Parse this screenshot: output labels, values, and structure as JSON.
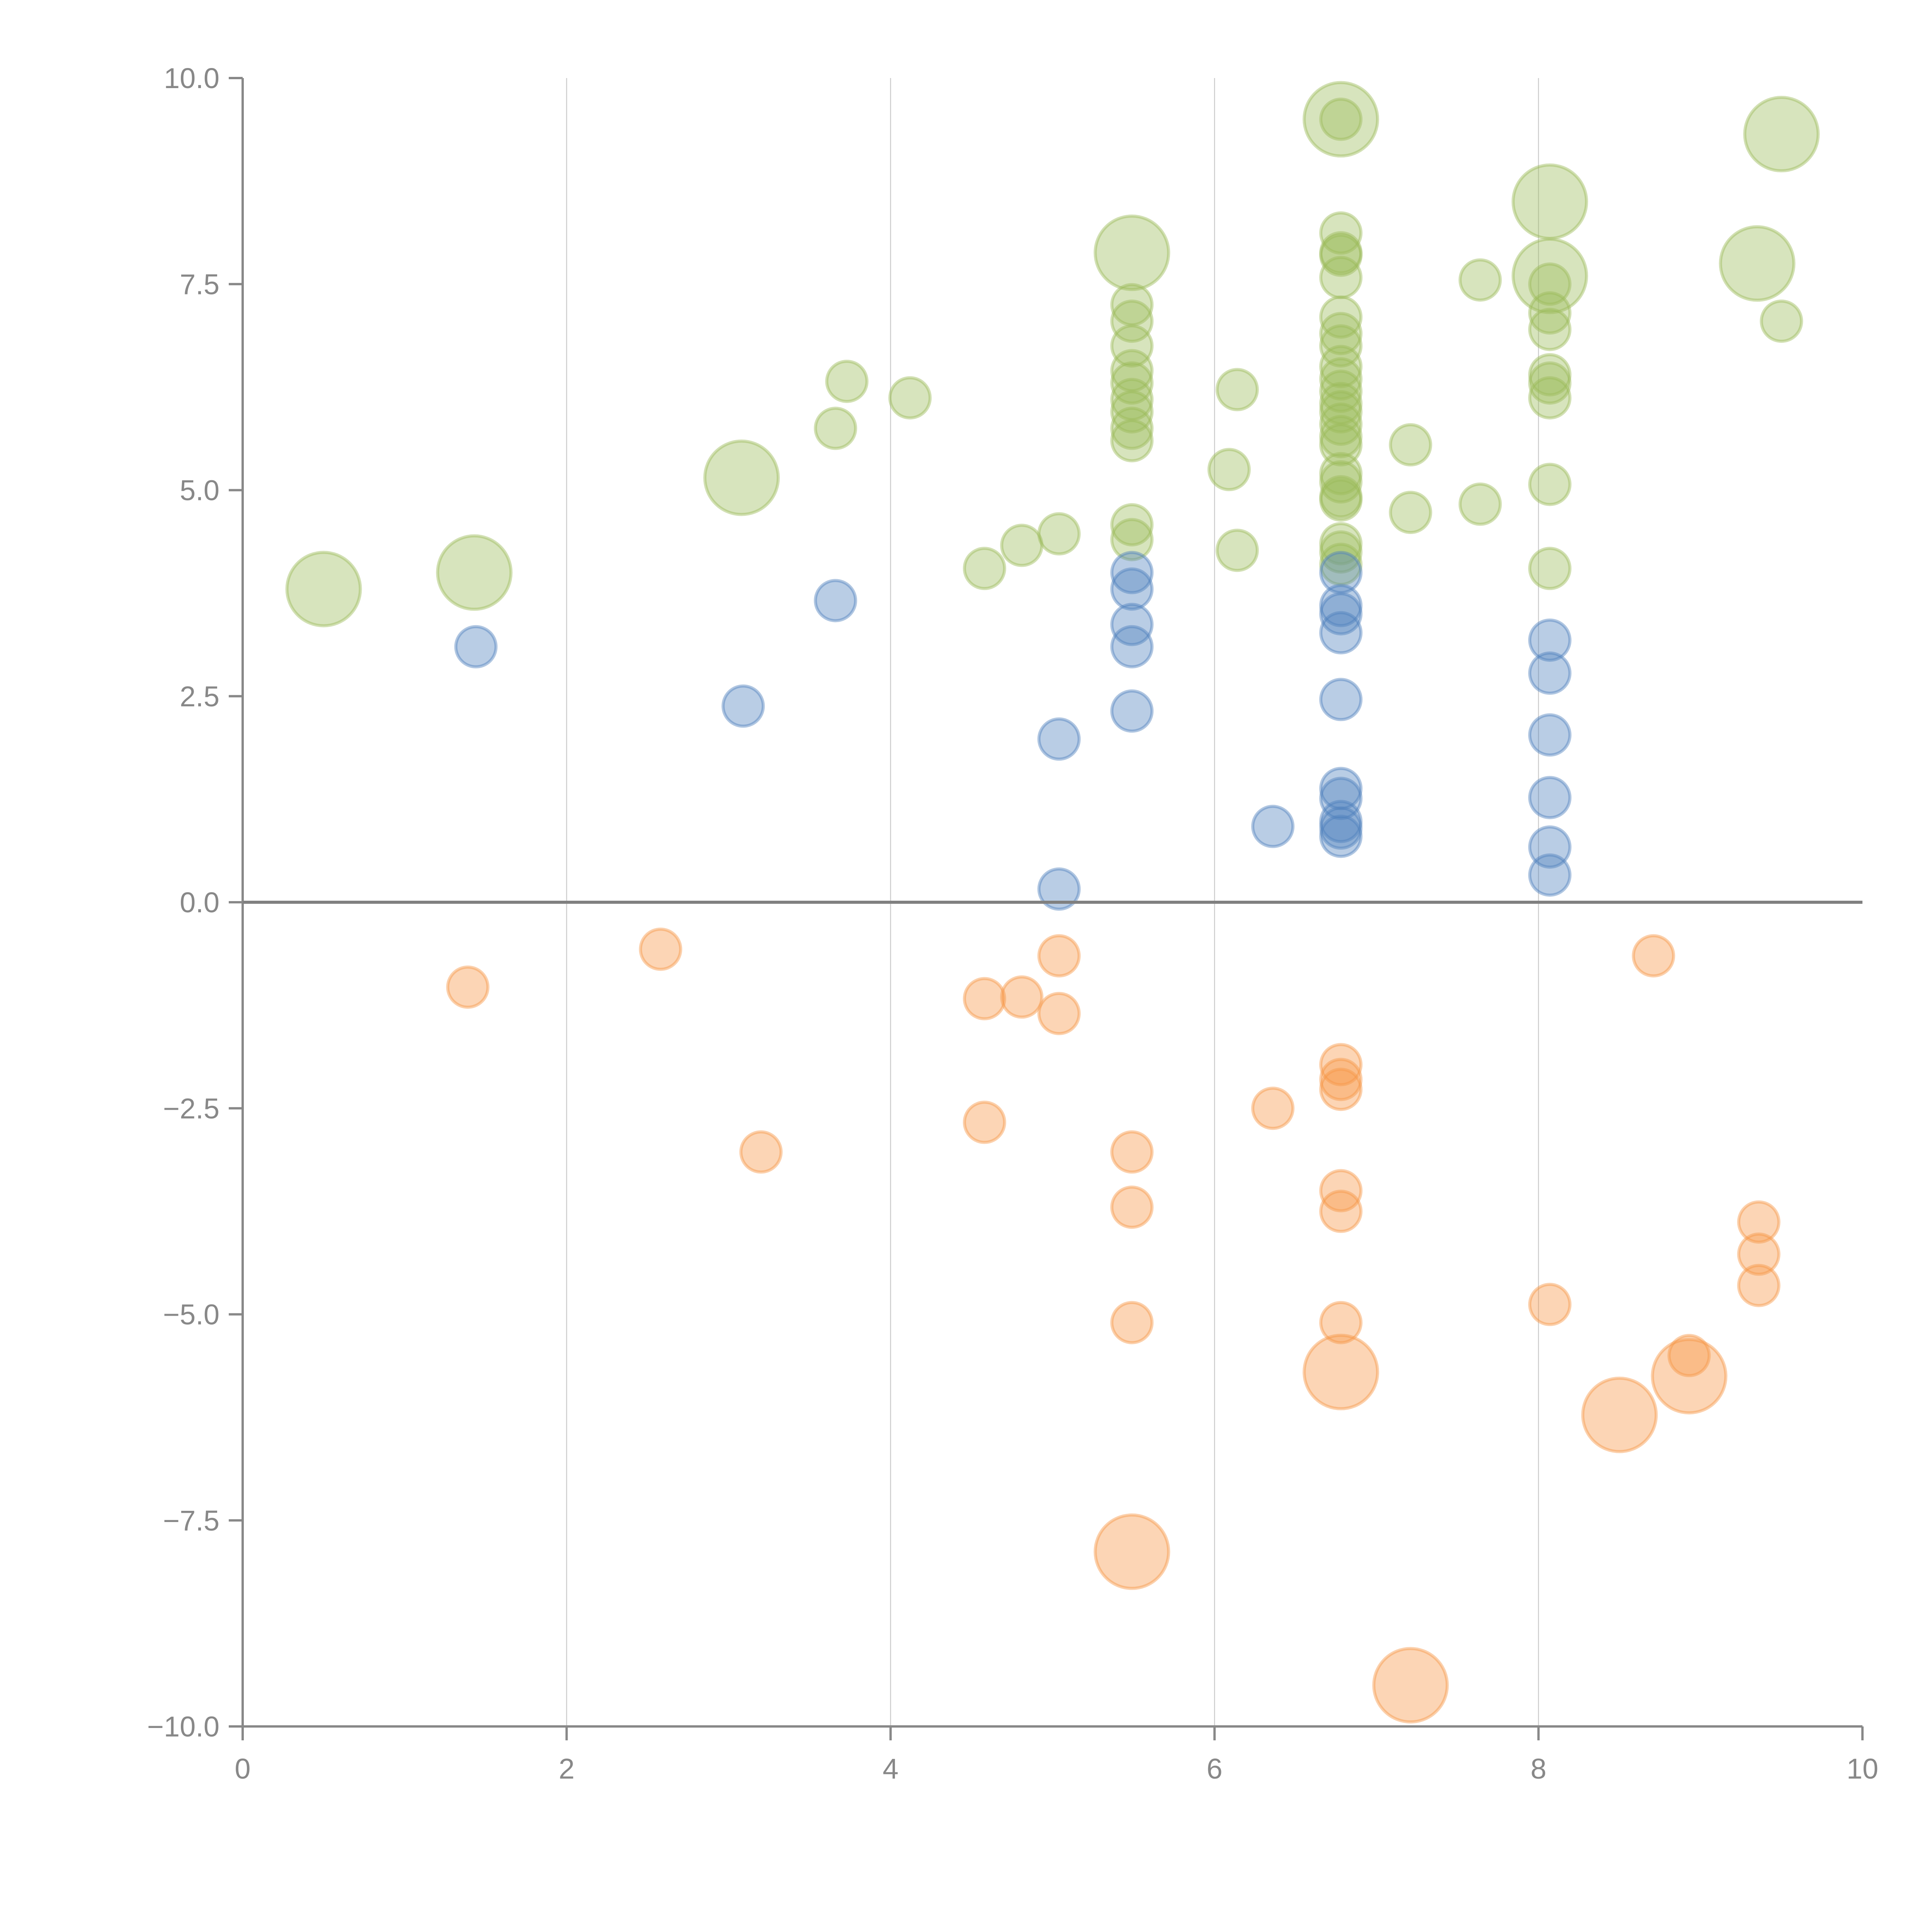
{
  "chart_data": {
    "type": "scatter",
    "title": "",
    "xlabel": "",
    "ylabel": "",
    "xlim": [
      0,
      10
    ],
    "ylim": [
      -10,
      10
    ],
    "x_ticks": [
      "0",
      "2",
      "4",
      "6",
      "8",
      "10"
    ],
    "y_ticks": [
      "10.0",
      "7.5",
      "5.0",
      "2.5",
      "0.0",
      "−2.5",
      "−5.0",
      "−7.5",
      "−10.0"
    ],
    "grid": "vertical",
    "legend": "none",
    "series": [
      {
        "name": "green",
        "color": "#9bbb59",
        "points": [
          {
            "x": 0.5,
            "y": 3.8,
            "size": "large"
          },
          {
            "x": 1.43,
            "y": 4.0,
            "size": "large"
          },
          {
            "x": 3.08,
            "y": 5.15,
            "size": "large"
          },
          {
            "x": 3.66,
            "y": 5.75,
            "size": "small"
          },
          {
            "x": 3.73,
            "y": 6.32,
            "size": "small"
          },
          {
            "x": 4.12,
            "y": 6.12,
            "size": "small"
          },
          {
            "x": 4.58,
            "y": 4.05,
            "size": "small"
          },
          {
            "x": 4.81,
            "y": 4.33,
            "size": "small"
          },
          {
            "x": 5.04,
            "y": 4.47,
            "size": "small"
          },
          {
            "x": 5.49,
            "y": 7.88,
            "size": "large"
          },
          {
            "x": 5.49,
            "y": 7.25,
            "size": "small"
          },
          {
            "x": 5.49,
            "y": 7.05,
            "size": "small"
          },
          {
            "x": 5.49,
            "y": 6.75,
            "size": "small"
          },
          {
            "x": 5.49,
            "y": 6.45,
            "size": "small"
          },
          {
            "x": 5.49,
            "y": 6.3,
            "size": "small"
          },
          {
            "x": 5.49,
            "y": 6.1,
            "size": "small"
          },
          {
            "x": 5.49,
            "y": 5.95,
            "size": "small"
          },
          {
            "x": 5.49,
            "y": 5.75,
            "size": "small"
          },
          {
            "x": 5.49,
            "y": 5.6,
            "size": "small"
          },
          {
            "x": 5.49,
            "y": 4.58,
            "size": "small"
          },
          {
            "x": 5.49,
            "y": 4.4,
            "size": "small"
          },
          {
            "x": 6.09,
            "y": 5.25,
            "size": "small"
          },
          {
            "x": 6.14,
            "y": 6.22,
            "size": "small"
          },
          {
            "x": 6.14,
            "y": 4.27,
            "size": "small"
          },
          {
            "x": 6.78,
            "y": 9.5,
            "size": "large"
          },
          {
            "x": 6.78,
            "y": 9.5,
            "size": "small"
          },
          {
            "x": 6.78,
            "y": 8.12,
            "size": "small"
          },
          {
            "x": 6.78,
            "y": 7.88,
            "size": "small"
          },
          {
            "x": 6.78,
            "y": 7.85,
            "size": "small"
          },
          {
            "x": 6.78,
            "y": 7.58,
            "size": "small"
          },
          {
            "x": 6.78,
            "y": 7.1,
            "size": "small"
          },
          {
            "x": 6.78,
            "y": 6.9,
            "size": "small"
          },
          {
            "x": 6.78,
            "y": 6.75,
            "size": "small"
          },
          {
            "x": 6.78,
            "y": 6.5,
            "size": "small"
          },
          {
            "x": 6.78,
            "y": 6.35,
            "size": "small"
          },
          {
            "x": 6.78,
            "y": 6.2,
            "size": "small"
          },
          {
            "x": 6.78,
            "y": 6.05,
            "size": "small"
          },
          {
            "x": 6.78,
            "y": 5.95,
            "size": "small"
          },
          {
            "x": 6.78,
            "y": 5.8,
            "size": "small"
          },
          {
            "x": 6.78,
            "y": 5.65,
            "size": "small"
          },
          {
            "x": 6.78,
            "y": 5.55,
            "size": "small"
          },
          {
            "x": 6.78,
            "y": 5.2,
            "size": "small"
          },
          {
            "x": 6.78,
            "y": 5.1,
            "size": "small"
          },
          {
            "x": 6.78,
            "y": 4.92,
            "size": "small"
          },
          {
            "x": 6.78,
            "y": 4.88,
            "size": "small"
          },
          {
            "x": 6.78,
            "y": 4.35,
            "size": "small"
          },
          {
            "x": 6.78,
            "y": 4.25,
            "size": "small"
          },
          {
            "x": 6.78,
            "y": 4.1,
            "size": "small"
          },
          {
            "x": 7.21,
            "y": 5.55,
            "size": "small"
          },
          {
            "x": 7.21,
            "y": 4.73,
            "size": "small"
          },
          {
            "x": 7.64,
            "y": 7.55,
            "size": "small"
          },
          {
            "x": 7.64,
            "y": 4.83,
            "size": "small"
          },
          {
            "x": 8.07,
            "y": 8.5,
            "size": "large"
          },
          {
            "x": 8.07,
            "y": 7.6,
            "size": "large"
          },
          {
            "x": 8.07,
            "y": 7.5,
            "size": "small"
          },
          {
            "x": 8.07,
            "y": 7.15,
            "size": "small"
          },
          {
            "x": 8.07,
            "y": 6.95,
            "size": "small"
          },
          {
            "x": 8.07,
            "y": 6.4,
            "size": "small"
          },
          {
            "x": 8.07,
            "y": 6.3,
            "size": "small"
          },
          {
            "x": 8.07,
            "y": 6.12,
            "size": "small"
          },
          {
            "x": 8.07,
            "y": 5.07,
            "size": "small"
          },
          {
            "x": 8.07,
            "y": 4.05,
            "size": "small"
          },
          {
            "x": 9.35,
            "y": 7.75,
            "size": "large"
          },
          {
            "x": 9.5,
            "y": 9.32,
            "size": "large"
          },
          {
            "x": 9.5,
            "y": 7.05,
            "size": "small"
          }
        ]
      },
      {
        "name": "blue",
        "color": "#4f81bd",
        "points": [
          {
            "x": 1.44,
            "y": 3.1,
            "size": "small"
          },
          {
            "x": 3.09,
            "y": 2.38,
            "size": "small"
          },
          {
            "x": 3.66,
            "y": 3.66,
            "size": "small"
          },
          {
            "x": 5.04,
            "y": 1.98,
            "size": "small"
          },
          {
            "x": 5.04,
            "y": 0.16,
            "size": "small"
          },
          {
            "x": 5.49,
            "y": 4.0,
            "size": "small"
          },
          {
            "x": 5.49,
            "y": 3.8,
            "size": "small"
          },
          {
            "x": 5.49,
            "y": 3.37,
            "size": "small"
          },
          {
            "x": 5.49,
            "y": 3.1,
            "size": "small"
          },
          {
            "x": 5.49,
            "y": 2.32,
            "size": "small"
          },
          {
            "x": 6.36,
            "y": 0.92,
            "size": "small"
          },
          {
            "x": 6.78,
            "y": 4.0,
            "size": "small"
          },
          {
            "x": 6.78,
            "y": 3.6,
            "size": "small"
          },
          {
            "x": 6.78,
            "y": 3.5,
            "size": "small"
          },
          {
            "x": 6.78,
            "y": 3.27,
            "size": "small"
          },
          {
            "x": 6.78,
            "y": 2.46,
            "size": "small"
          },
          {
            "x": 6.78,
            "y": 1.38,
            "size": "small"
          },
          {
            "x": 6.78,
            "y": 1.26,
            "size": "small"
          },
          {
            "x": 6.78,
            "y": 0.98,
            "size": "small"
          },
          {
            "x": 6.78,
            "y": 0.9,
            "size": "small"
          },
          {
            "x": 6.78,
            "y": 0.8,
            "size": "small"
          },
          {
            "x": 8.07,
            "y": 3.18,
            "size": "small"
          },
          {
            "x": 8.07,
            "y": 2.78,
            "size": "small"
          },
          {
            "x": 8.07,
            "y": 2.03,
            "size": "small"
          },
          {
            "x": 8.07,
            "y": 1.27,
            "size": "small"
          },
          {
            "x": 8.07,
            "y": 0.67,
            "size": "small"
          },
          {
            "x": 8.07,
            "y": 0.33,
            "size": "small"
          }
        ]
      },
      {
        "name": "orange",
        "color": "#f79646",
        "points": [
          {
            "x": 1.39,
            "y": -1.03,
            "size": "small"
          },
          {
            "x": 2.58,
            "y": -0.57,
            "size": "small"
          },
          {
            "x": 3.2,
            "y": -3.03,
            "size": "small"
          },
          {
            "x": 4.58,
            "y": -1.17,
            "size": "small"
          },
          {
            "x": 4.58,
            "y": -2.67,
            "size": "small"
          },
          {
            "x": 4.81,
            "y": -1.15,
            "size": "small"
          },
          {
            "x": 5.04,
            "y": -0.65,
            "size": "small"
          },
          {
            "x": 5.04,
            "y": -1.35,
            "size": "small"
          },
          {
            "x": 5.49,
            "y": -3.03,
            "size": "small"
          },
          {
            "x": 5.49,
            "y": -3.7,
            "size": "small"
          },
          {
            "x": 5.49,
            "y": -5.1,
            "size": "small"
          },
          {
            "x": 5.49,
            "y": -7.88,
            "size": "large"
          },
          {
            "x": 6.36,
            "y": -2.5,
            "size": "small"
          },
          {
            "x": 6.78,
            "y": -1.97,
            "size": "small"
          },
          {
            "x": 6.78,
            "y": -2.15,
            "size": "small"
          },
          {
            "x": 6.78,
            "y": -2.27,
            "size": "small"
          },
          {
            "x": 6.78,
            "y": -3.5,
            "size": "small"
          },
          {
            "x": 6.78,
            "y": -3.75,
            "size": "small"
          },
          {
            "x": 6.78,
            "y": -5.1,
            "size": "small"
          },
          {
            "x": 6.78,
            "y": -5.7,
            "size": "large"
          },
          {
            "x": 7.21,
            "y": -9.5,
            "size": "large"
          },
          {
            "x": 8.07,
            "y": -4.88,
            "size": "small"
          },
          {
            "x": 8.5,
            "y": -6.22,
            "size": "large"
          },
          {
            "x": 8.71,
            "y": -0.65,
            "size": "small"
          },
          {
            "x": 8.93,
            "y": -5.75,
            "size": "large"
          },
          {
            "x": 8.93,
            "y": -5.5,
            "size": "small"
          },
          {
            "x": 9.36,
            "y": -3.88,
            "size": "small"
          },
          {
            "x": 9.36,
            "y": -4.27,
            "size": "small"
          },
          {
            "x": 9.36,
            "y": -4.65,
            "size": "small"
          }
        ]
      }
    ]
  }
}
